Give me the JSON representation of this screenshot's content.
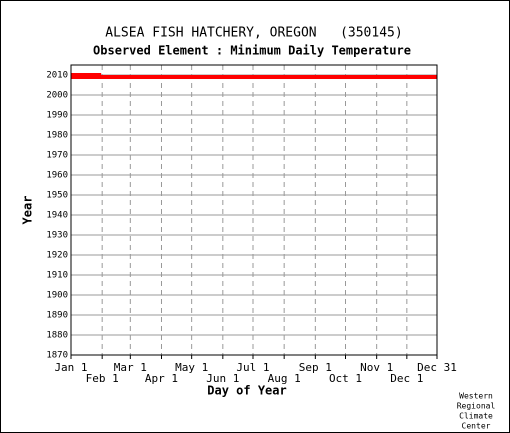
{
  "chart_data": {
    "type": "segments",
    "title": "ALSEA FISH HATCHERY, OREGON   (350145)",
    "subtitle": "Observed Element : Minimum Daily Temperature",
    "xlabel": "Day of Year",
    "ylabel": "Year",
    "xlim": [
      1,
      365
    ],
    "ylim": [
      1870,
      2015
    ],
    "xticks": [
      {
        "value": 1,
        "label": "Jan 1"
      },
      {
        "value": 32,
        "label": "Feb 1"
      },
      {
        "value": 60,
        "label": "Mar 1"
      },
      {
        "value": 91,
        "label": "Apr 1"
      },
      {
        "value": 121,
        "label": "May 1"
      },
      {
        "value": 152,
        "label": "Jun 1"
      },
      {
        "value": 182,
        "label": "Jul 1"
      },
      {
        "value": 213,
        "label": "Aug 1"
      },
      {
        "value": 244,
        "label": "Sep 1"
      },
      {
        "value": 274,
        "label": "Oct 1"
      },
      {
        "value": 305,
        "label": "Nov 1"
      },
      {
        "value": 335,
        "label": "Dec 1"
      },
      {
        "value": 365,
        "label": "Dec 31"
      }
    ],
    "yticks": [
      1870,
      1880,
      1890,
      1900,
      1910,
      1920,
      1930,
      1940,
      1950,
      1960,
      1970,
      1980,
      1990,
      2000,
      2010
    ],
    "grid": true,
    "color": "#ff0000",
    "segments": [
      {
        "y": 2010,
        "x": [
          1,
          31
        ]
      },
      {
        "y": 2009,
        "x": [
          1,
          365
        ]
      }
    ],
    "credit": [
      "Western",
      "Regional",
      "Climate",
      "Center"
    ]
  }
}
